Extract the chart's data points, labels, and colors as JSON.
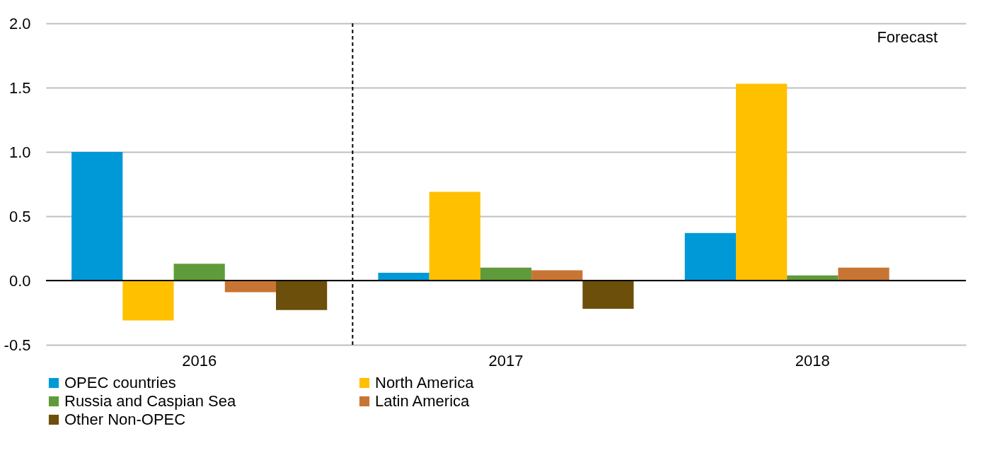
{
  "chart_data": {
    "type": "bar",
    "categories": [
      "2016",
      "2017",
      "2018"
    ],
    "series": [
      {
        "name": "OPEC countries",
        "color": "#0099d8",
        "values": [
          1.0,
          0.06,
          0.37
        ]
      },
      {
        "name": "North America",
        "color": "#ffc000",
        "values": [
          -0.31,
          0.69,
          1.53
        ]
      },
      {
        "name": "Russia and Caspian Sea",
        "color": "#5f9b3a",
        "values": [
          0.13,
          0.1,
          0.04
        ]
      },
      {
        "name": "Latin America",
        "color": "#c87533",
        "values": [
          -0.09,
          0.08,
          0.1
        ]
      },
      {
        "name": "Other Non-OPEC",
        "color": "#6b4f0a",
        "values": [
          -0.23,
          -0.22,
          null
        ]
      }
    ],
    "ylim": [
      -0.5,
      2.0
    ],
    "yticks": [
      {
        "value": -0.5,
        "label": "-0.5"
      },
      {
        "value": 0,
        "label": "0.0"
      },
      {
        "value": 0.5,
        "label": "0.5"
      },
      {
        "value": 1,
        "label": "1.0"
      },
      {
        "value": 1.5,
        "label": "1.5"
      },
      {
        "value": 2,
        "label": "2.0"
      }
    ],
    "grid": "y",
    "legend": "bottom",
    "ref_lines": [
      {
        "axis": "x",
        "value": "2017",
        "label": null,
        "color": "#000000",
        "line_style": "dashed"
      }
    ],
    "annotations": [
      "Forecast"
    ]
  }
}
